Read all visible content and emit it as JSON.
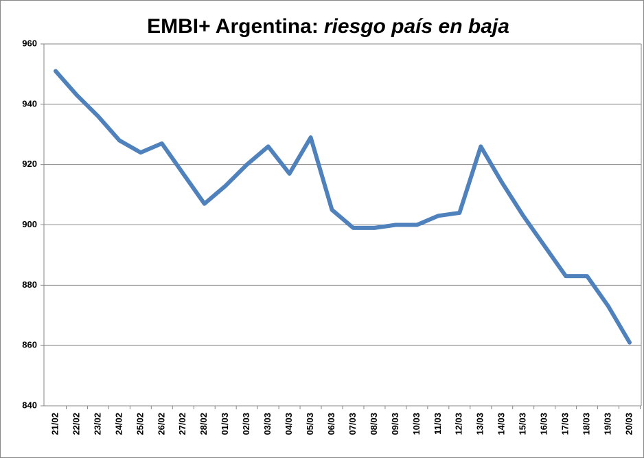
{
  "chart_data": {
    "type": "line",
    "title_parts": [
      "EMBI+ Argentina:",
      "riesgo país en baja"
    ],
    "categories": [
      "21/02",
      "22/02",
      "23/02",
      "24/02",
      "25/02",
      "26/02",
      "27/02",
      "28/02",
      "01/03",
      "02/03",
      "03/03",
      "04/03",
      "05/03",
      "06/03",
      "07/03",
      "08/03",
      "09/03",
      "10/03",
      "11/03",
      "12/03",
      "13/03",
      "14/03",
      "15/03",
      "16/03",
      "17/03",
      "18/03",
      "19/03",
      "20/03"
    ],
    "values": [
      951,
      943,
      936,
      928,
      924,
      927,
      917,
      907,
      913,
      920,
      926,
      917,
      929,
      905,
      899,
      899,
      900,
      900,
      903,
      904,
      926,
      914,
      903,
      893,
      883,
      883,
      873,
      861
    ],
    "color": "#4f81bd",
    "ylim": [
      840,
      960
    ],
    "yticks": [
      840,
      860,
      880,
      900,
      920,
      940,
      960
    ],
    "grid": true
  }
}
